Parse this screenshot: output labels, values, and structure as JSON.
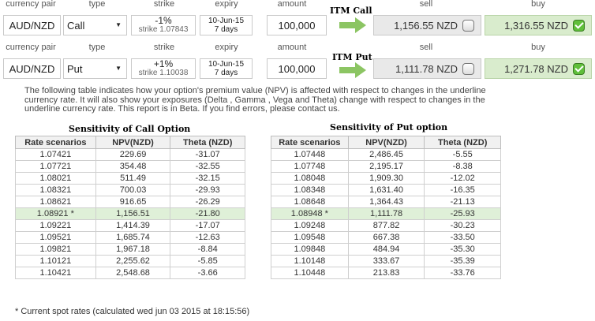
{
  "headers": {
    "pair": "currency pair",
    "type": "type",
    "strike": "strike",
    "expiry": "expiry",
    "amount": "amount",
    "sell": "sell",
    "buy": "buy"
  },
  "call": {
    "pair": "AUD/NZD",
    "type": "Call",
    "strike_pct": "-1%",
    "strike_val": "strike 1.07843",
    "expiry_date": "10-Jun-15",
    "expiry_days": "7 days",
    "amount": "100,000",
    "itm": "ITM Call",
    "sell": "1,156.55 NZD",
    "buy": "1,316.55 NZD"
  },
  "put": {
    "pair": "AUD/NZD",
    "type": "Put",
    "strike_pct": "+1%",
    "strike_val": "strike 1.10038",
    "expiry_date": "10-Jun-15",
    "expiry_days": "7 days",
    "amount": "100,000",
    "itm": "ITM Put",
    "sell": "1,111.78 NZD",
    "buy": "1,271.78 NZD"
  },
  "info_text": "The following table indicates how your option's premium value (NPV) is affected with respect to changes in the underline currency rate. It will also show your exposures (Delta , Gamma , Vega and Theta) change with respect to changes in the underline currency rate. This report is in Beta. If you find errors, please contact us.",
  "call_table": {
    "title": "Sensitivity of Call Option",
    "columns": [
      "Rate scenarios",
      "NPV(NZD)",
      "Theta (NZD)"
    ],
    "rows": [
      [
        "1.07421",
        "229.69",
        "-31.07"
      ],
      [
        "1.07721",
        "354.48",
        "-32.55"
      ],
      [
        "1.08021",
        "511.49",
        "-32.15"
      ],
      [
        "1.08321",
        "700.03",
        "-29.93"
      ],
      [
        "1.08621",
        "916.65",
        "-26.29"
      ],
      [
        "1.08921 *",
        "1,156.51",
        "-21.80"
      ],
      [
        "1.09221",
        "1,414.39",
        "-17.07"
      ],
      [
        "1.09521",
        "1,685.74",
        "-12.63"
      ],
      [
        "1.09821",
        "1,967.18",
        "-8.84"
      ],
      [
        "1.10121",
        "2,255.62",
        "-5.85"
      ],
      [
        "1.10421",
        "2,548.68",
        "-3.66"
      ]
    ]
  },
  "put_table": {
    "title": "Sensitivity of Put option",
    "columns": [
      "Rate scenarios",
      "NPV(NZD)",
      "Theta (NZD)"
    ],
    "rows": [
      [
        "1.07448",
        "2,486.45",
        "-5.55"
      ],
      [
        "1.07748",
        "2,195.17",
        "-8.38"
      ],
      [
        "1.08048",
        "1,909.30",
        "-12.02"
      ],
      [
        "1.08348",
        "1,631.40",
        "-16.35"
      ],
      [
        "1.08648",
        "1,364.43",
        "-21.13"
      ],
      [
        "1.08948 *",
        "1,111.78",
        "-25.93"
      ],
      [
        "1.09248",
        "877.82",
        "-30.23"
      ],
      [
        "1.09548",
        "667.38",
        "-33.50"
      ],
      [
        "1.09848",
        "484.94",
        "-35.30"
      ],
      [
        "1.10148",
        "333.67",
        "-35.39"
      ],
      [
        "1.10448",
        "213.83",
        "-33.76"
      ]
    ]
  },
  "footnote": "* Current spot rates (calculated wed jun 03 2015 at 18:15:56)",
  "colors": {
    "buy_bg": "#d9eccd",
    "sell_bg": "#e9e9e9",
    "arrow": "#8cc563",
    "highlight": "#dff0d8",
    "check": "#5fbf3a"
  }
}
